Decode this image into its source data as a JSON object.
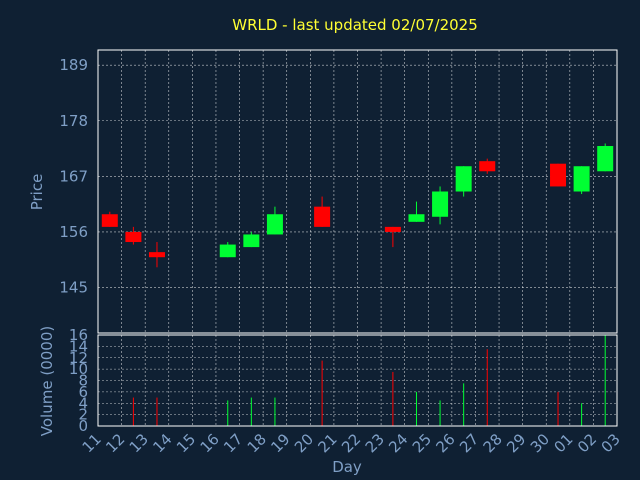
{
  "chart_data": {
    "type": "candlestick",
    "title": "WRLD - last updated 02/07/2025",
    "xlabel": "Day",
    "price_ylabel": "Price",
    "volume_ylabel": "Volume (0000)",
    "x_tick_labels": [
      "11",
      "12",
      "13",
      "14",
      "15",
      "16",
      "17",
      "18",
      "19",
      "20",
      "21",
      "22",
      "23",
      "24",
      "25",
      "26",
      "27",
      "28",
      "29",
      "30",
      "01",
      "02",
      "03"
    ],
    "price_ticks": [
      145,
      156,
      167,
      178,
      189
    ],
    "price_ylim": [
      136,
      192
    ],
    "volume_ticks": [
      0,
      2,
      4,
      6,
      8,
      10,
      12,
      14,
      16
    ],
    "volume_ylim": [
      0,
      16
    ],
    "grid": true,
    "colors": {
      "up": "#00ff33",
      "down": "#ff0000",
      "title": "#ffff33",
      "axis_text": "#7f9fc6",
      "background": "#0f2033"
    },
    "candles": [
      {
        "day": "11",
        "open": 159.5,
        "high": 160.0,
        "low": 157.0,
        "close": 157.0,
        "volume": 0
      },
      {
        "day": "12",
        "open": 156.0,
        "high": 157.0,
        "low": 153.5,
        "close": 154.0,
        "volume": 5
      },
      {
        "day": "13",
        "open": 152.0,
        "high": 154.0,
        "low": 149.0,
        "close": 151.0,
        "volume": 5
      },
      {
        "day": "16",
        "open": 151.0,
        "high": 154.0,
        "low": 151.0,
        "close": 153.5,
        "volume": 4.5
      },
      {
        "day": "17",
        "open": 153.0,
        "high": 156.0,
        "low": 153.0,
        "close": 155.5,
        "volume": 5
      },
      {
        "day": "18",
        "open": 155.5,
        "high": 161.0,
        "low": 155.5,
        "close": 159.5,
        "volume": 5
      },
      {
        "day": "20",
        "open": 161.0,
        "high": 163.0,
        "low": 157.0,
        "close": 157.0,
        "volume": 11.5
      },
      {
        "day": "23",
        "open": 157.0,
        "high": 157.0,
        "low": 153.0,
        "close": 156.0,
        "volume": 9.5
      },
      {
        "day": "24",
        "open": 158.0,
        "high": 162.0,
        "low": 158.0,
        "close": 159.5,
        "volume": 6
      },
      {
        "day": "25",
        "open": 159.0,
        "high": 165.0,
        "low": 157.5,
        "close": 164.0,
        "volume": 4.5
      },
      {
        "day": "26",
        "open": 164.0,
        "high": 169.0,
        "low": 163.0,
        "close": 169.0,
        "volume": 7.5
      },
      {
        "day": "27",
        "open": 170.0,
        "high": 170.5,
        "low": 167.5,
        "close": 168.0,
        "volume": 13.5
      },
      {
        "day": "30",
        "open": 169.5,
        "high": 169.5,
        "low": 165.0,
        "close": 165.0,
        "volume": 6
      },
      {
        "day": "01",
        "open": 164.0,
        "high": 169.0,
        "low": 163.5,
        "close": 169.0,
        "volume": 4
      },
      {
        "day": "02",
        "open": 168.0,
        "high": 173.5,
        "low": 168.0,
        "close": 173.0,
        "volume": 16
      }
    ]
  }
}
